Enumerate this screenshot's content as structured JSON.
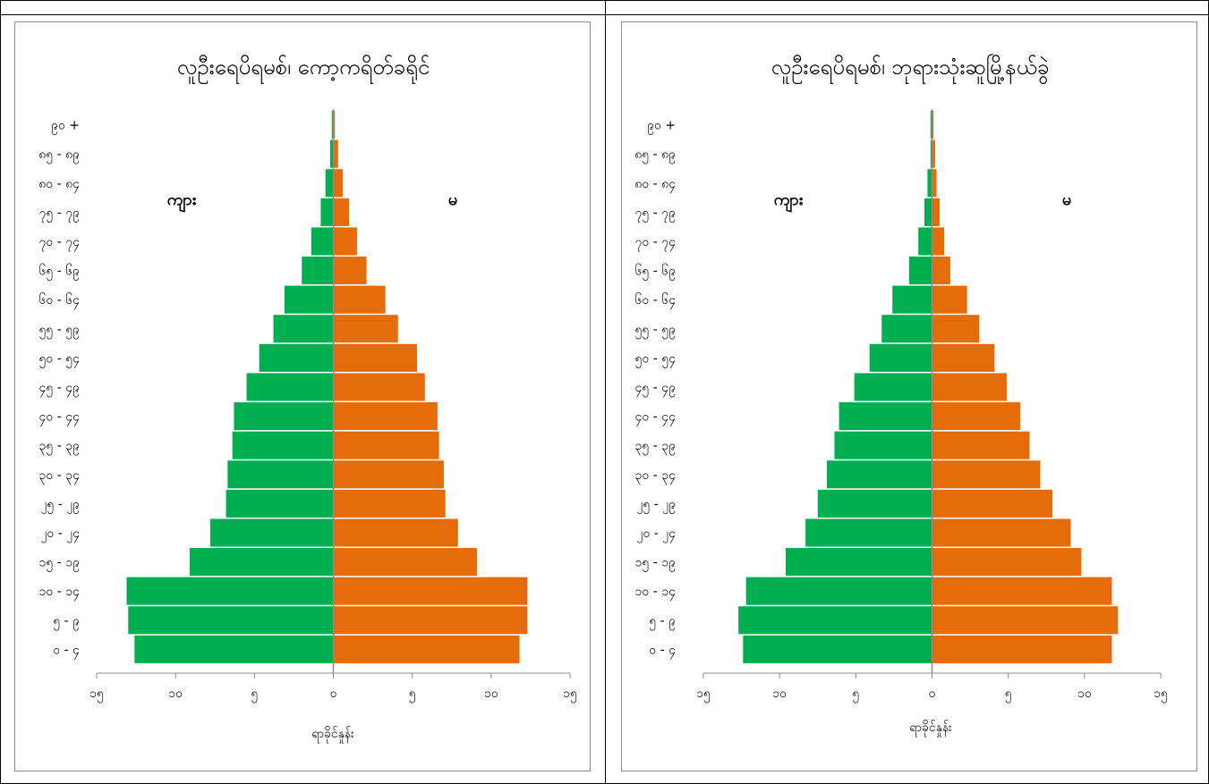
{
  "chart_data": [
    {
      "type": "bar",
      "orientation": "horizontal",
      "title": "လူဦးရေပိရမစ်၊ ကော့ကရိတ်ခရိုင်",
      "categories": [
        "၀ - ၄",
        "၅ - ၉",
        "၁၀ - ၁၄",
        "၁၅ - ၁၉",
        "၂၀ - ၂၄",
        "၂၅ - ၂၉",
        "၃၀ - ၃၄",
        "၃၅ - ၃၉",
        "၄၀ - ၄၄",
        "၄၅ - ၄၉",
        "၅၀ - ၅၄",
        "၅၅ - ၅၉",
        "၆၀ - ၆၄",
        "၆၅ - ၆၉",
        "၇၀ - ၇၄",
        "၇၅ - ၇၉",
        "၈၀ - ၈၄",
        "၈၅ - ၈၉",
        "၉၀ +"
      ],
      "series": [
        {
          "name": "ကျား",
          "color": "#00b050",
          "values": [
            12.6,
            13.0,
            13.1,
            9.1,
            7.8,
            6.8,
            6.7,
            6.4,
            6.3,
            5.5,
            4.7,
            3.8,
            3.1,
            2.0,
            1.4,
            0.8,
            0.5,
            0.2,
            0.1
          ]
        },
        {
          "name": "မ",
          "color": "#e46c0a",
          "values": [
            11.8,
            12.3,
            12.3,
            9.1,
            7.9,
            7.1,
            7.0,
            6.7,
            6.6,
            5.8,
            5.3,
            4.1,
            3.3,
            2.1,
            1.5,
            1.0,
            0.6,
            0.3,
            0.1
          ]
        }
      ],
      "xlim": [
        -15,
        15
      ],
      "xticks": [
        "၁၅",
        "၁၀",
        "၅",
        "၀",
        "၅",
        "၁၀",
        "၁၅"
      ],
      "xlabel": "ရာခိုင်နှုန်း",
      "ylabel": "",
      "grid": false,
      "legend": "none",
      "label_left": "ကျား",
      "label_right": "မ"
    },
    {
      "type": "bar",
      "orientation": "horizontal",
      "title": "လူဦးရေပိရမစ်၊ ဘုရားသုံးဆူမြို့နယ်ခွဲ",
      "categories": [
        "၀ - ၄",
        "၅ - ၉",
        "၁၀ - ၁၄",
        "၁၅ - ၁၉",
        "၂၀ - ၂၄",
        "၂၅ - ၂၉",
        "၃၀ - ၃၄",
        "၃၅ - ၃၉",
        "၄၀ - ၄၄",
        "၄၅ - ၄၉",
        "၅၀ - ၅၄",
        "၅၅ - ၅၉",
        "၆၀ - ၆၄",
        "၆၅ - ၆၉",
        "၇၀ - ၇၄",
        "၇၅ - ၇၉",
        "၈၀ - ၈၄",
        "၈၅ - ၈၉",
        "၉၀ +"
      ],
      "series": [
        {
          "name": "ကျား",
          "color": "#00b050",
          "values": [
            12.4,
            12.7,
            12.2,
            9.6,
            8.3,
            7.5,
            6.9,
            6.4,
            6.1,
            5.1,
            4.1,
            3.3,
            2.6,
            1.5,
            0.9,
            0.5,
            0.3,
            0.1,
            0.1
          ]
        },
        {
          "name": "မ",
          "color": "#e46c0a",
          "values": [
            11.8,
            12.2,
            11.8,
            9.8,
            9.1,
            7.9,
            7.1,
            6.4,
            5.8,
            4.9,
            4.1,
            3.1,
            2.3,
            1.2,
            0.8,
            0.5,
            0.3,
            0.2,
            0.1
          ]
        }
      ],
      "xlim": [
        -15,
        15
      ],
      "xticks": [
        "၁၅",
        "၁၀",
        "၅",
        "၀",
        "၅",
        "၁၀",
        "၁၅"
      ],
      "xlabel": "ရာခိုင်နှုန်း",
      "ylabel": "",
      "grid": false,
      "legend": "none",
      "label_left": "ကျား",
      "label_right": "မ"
    }
  ]
}
